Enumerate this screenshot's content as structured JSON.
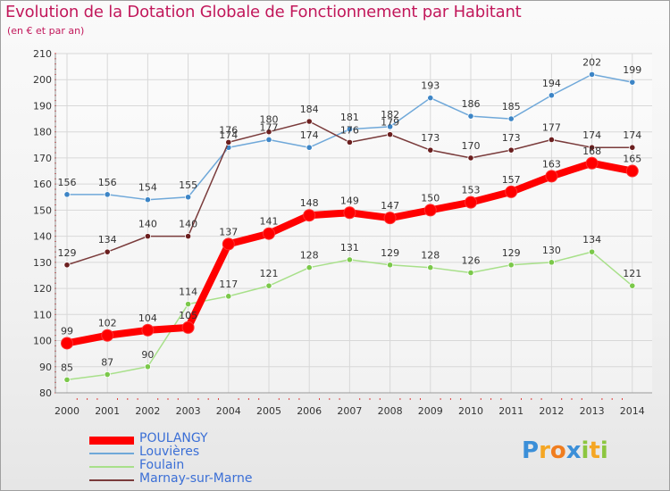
{
  "title": "Evolution de la Dotation Globale de Fonctionnement par Habitant",
  "subtitle": "(en € et par an)",
  "logo": {
    "text": "Proxiti",
    "letters": [
      "P",
      "r",
      "o",
      "x",
      "i",
      "t",
      "i"
    ]
  },
  "colors": {
    "title": "#c2185b",
    "axis_text": "#333333",
    "grid": "#d8d8d8",
    "legend_text": "#3b6fd6"
  },
  "chart_data": {
    "type": "line",
    "title": "Evolution de la Dotation Globale de Fonctionnement par Habitant",
    "subtitle": "(en € et par an)",
    "xlabel": "",
    "ylabel": "",
    "categories": [
      "2000",
      "2001",
      "2002",
      "2003",
      "2004",
      "2005",
      "2006",
      "2007",
      "2008",
      "2009",
      "2010",
      "2011",
      "2012",
      "2013",
      "2014"
    ],
    "ylim": [
      80,
      210
    ],
    "yticks": [
      80,
      90,
      100,
      110,
      120,
      130,
      140,
      150,
      160,
      170,
      180,
      190,
      200,
      210
    ],
    "grid": true,
    "legend_position": "bottom-left",
    "series": [
      {
        "name": "POULANGY",
        "color": "#ff0000",
        "dot_color": "#ff0000",
        "values": [
          99,
          102,
          104,
          105,
          137,
          141,
          148,
          149,
          147,
          150,
          153,
          157,
          163,
          168,
          165
        ],
        "labels": [
          "99",
          "102",
          "104",
          "105",
          "137",
          "141",
          "148",
          "149",
          "147",
          "150",
          "153",
          "157",
          "163",
          "168",
          "165"
        ]
      },
      {
        "name": "Louvières",
        "color": "#6fa8d9",
        "dot_color": "#3d85c6",
        "values": [
          156,
          156,
          154,
          155,
          174,
          177,
          174,
          181,
          182,
          193,
          186,
          185,
          194,
          202,
          199
        ],
        "labels": [
          "156",
          "156",
          "154",
          "155",
          "174",
          "177",
          "174",
          "181",
          "182",
          "193",
          "186",
          "185",
          "194",
          "202",
          "199"
        ]
      },
      {
        "name": "Foulain",
        "color": "#a8e08a",
        "dot_color": "#7bc84a",
        "values": [
          85,
          87,
          90,
          114,
          117,
          121,
          128,
          131,
          129,
          128,
          126,
          129,
          130,
          134,
          121
        ],
        "labels": [
          "85",
          "87",
          "90",
          "114",
          "117",
          "121",
          "128",
          "131",
          "129",
          "128",
          "126",
          "129",
          "130",
          "134",
          "121"
        ]
      },
      {
        "name": "Marnay-sur-Marne",
        "color": "#7a3b3b",
        "dot_color": "#6b1f1f",
        "values": [
          129,
          134,
          140,
          140,
          176,
          180,
          184,
          176,
          179,
          173,
          170,
          173,
          177,
          174,
          174
        ],
        "labels": [
          "129",
          "134",
          "140",
          "140",
          "176",
          "180",
          "184",
          "176",
          "179",
          "173",
          "170",
          "173",
          "177",
          "174",
          "174"
        ]
      }
    ]
  }
}
